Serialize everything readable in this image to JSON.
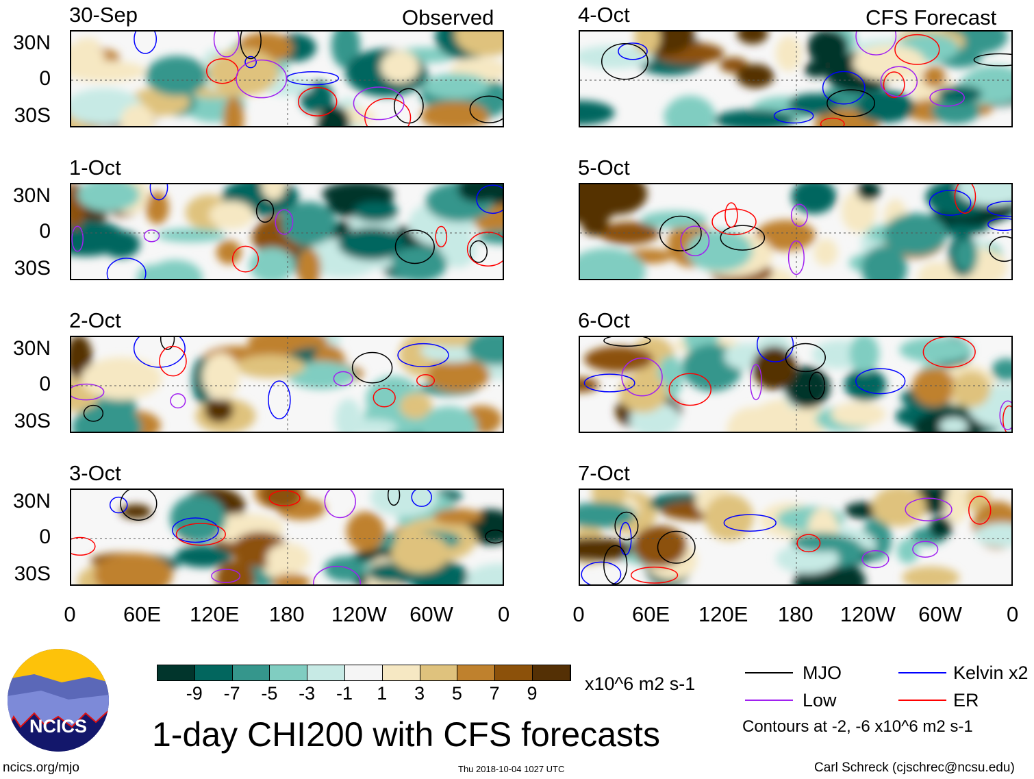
{
  "column_headers": {
    "left": "Observed",
    "right": "CFS Forecast"
  },
  "panels_left": [
    "30-Sep",
    "1-Oct",
    "2-Oct",
    "3-Oct"
  ],
  "panels_right": [
    "4-Oct",
    "5-Oct",
    "6-Oct",
    "7-Oct"
  ],
  "lat_labels": [
    "30N",
    "0",
    "30S"
  ],
  "lon_labels": [
    "0",
    "60E",
    "120E",
    "180",
    "120W",
    "60W",
    "0"
  ],
  "colorbar": {
    "colors": [
      "#01352c",
      "#02665e",
      "#35968c",
      "#80cdc1",
      "#c7eae5",
      "#f5f5f5",
      "#f6e8c3",
      "#dfc27d",
      "#bf812d",
      "#8c510a",
      "#543005"
    ],
    "labels": [
      "-9",
      "-7",
      "-5",
      "-3",
      "-1",
      "1",
      "3",
      "5",
      "7",
      "9"
    ],
    "units": "x10^6 m2 s-1"
  },
  "title": "1-day CHI200 with CFS forecasts",
  "legend": {
    "items": [
      {
        "label": "MJO",
        "color": "#000000"
      },
      {
        "label": "Kelvin x2",
        "color": "#0000ff"
      },
      {
        "label": "Low",
        "color": "#a020f0"
      },
      {
        "label": "ER",
        "color": "#ff0000"
      }
    ],
    "note": "Contours at -2, -6 x10^6 m2 s-1"
  },
  "logo": {
    "text": "NCICS"
  },
  "footer": {
    "url": "ncics.org/mjo",
    "timestamp": "Thu 2018-10-04 1027 UTC",
    "credit": "Carl Schreck (cjschrec@ncsu.edu)"
  }
}
